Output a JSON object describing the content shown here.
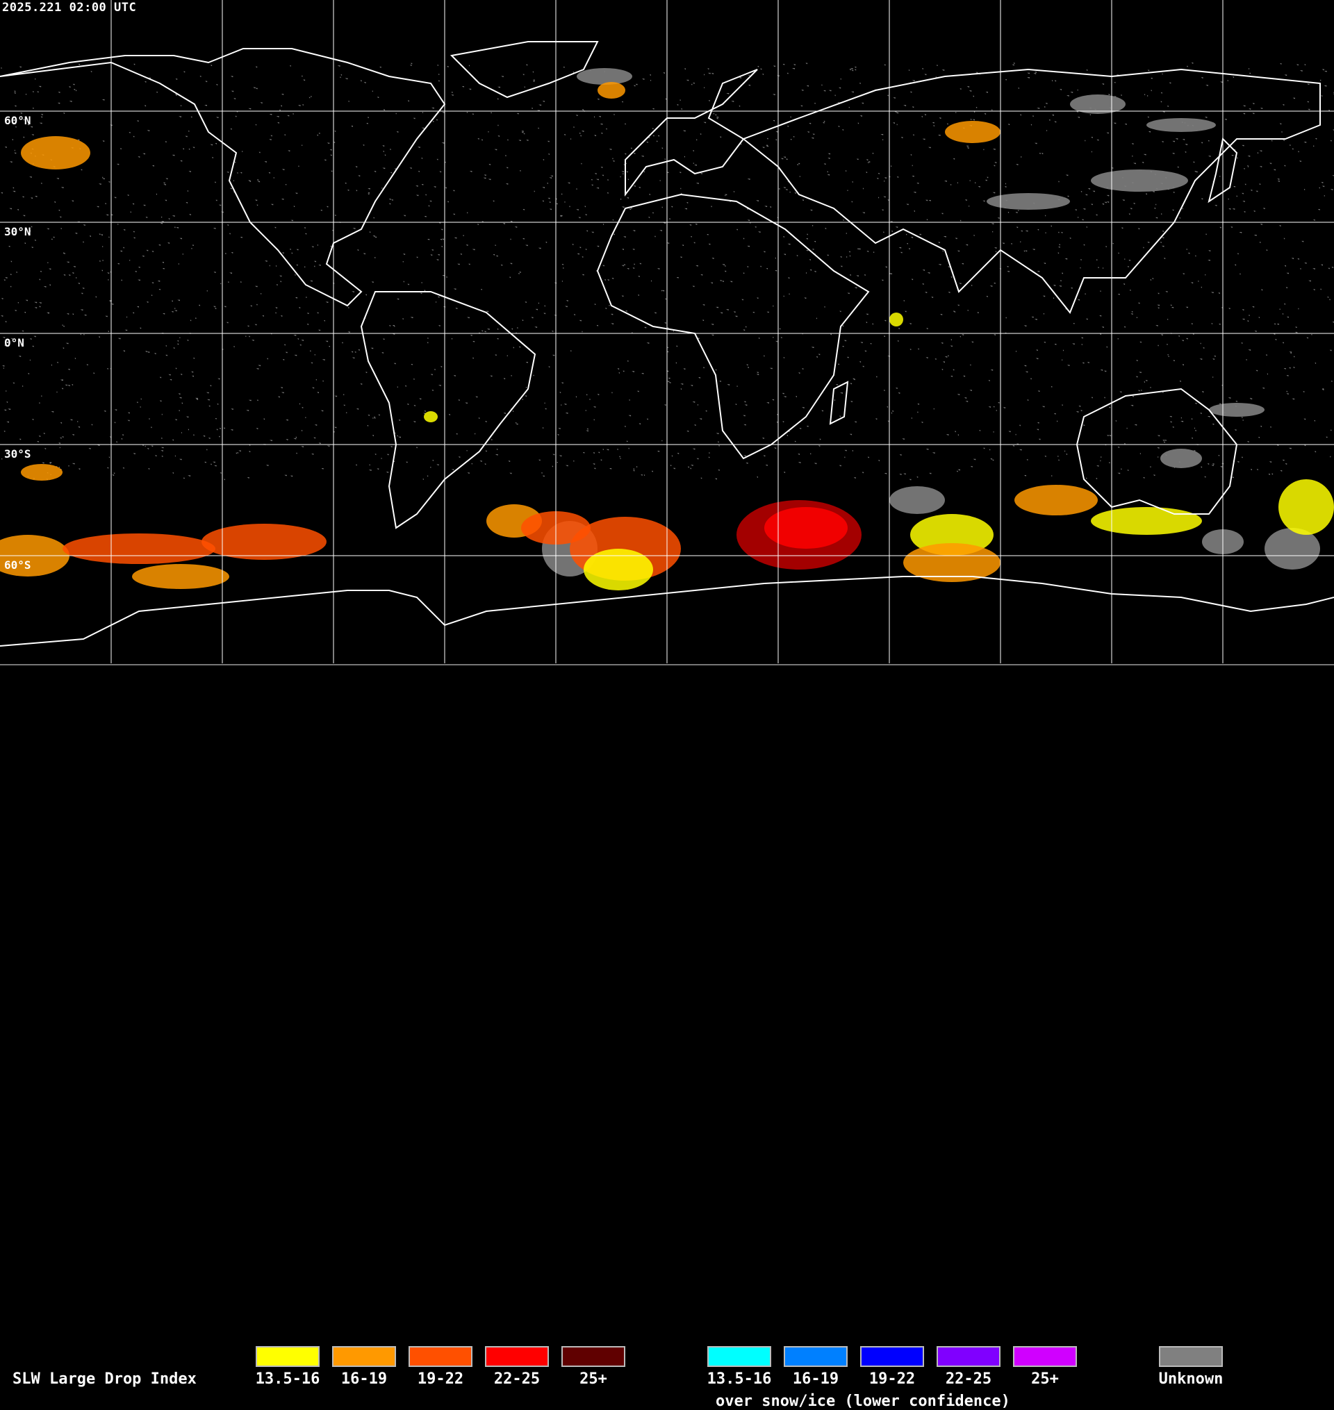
{
  "map": {
    "timestamp": "2025.221 02:00 UTC",
    "projection": "equirectangular",
    "graticule_spacing_deg": 30,
    "lat_labels": [
      "60°N",
      "30°N",
      "0°N",
      "30°S",
      "60°S"
    ]
  },
  "legend": {
    "title": "SLW Large Drop Index",
    "liquid": [
      {
        "label": "13.5-16",
        "color": "#ffff00"
      },
      {
        "label": "16-19",
        "color": "#ff9900"
      },
      {
        "label": "19-22",
        "color": "#ff5000"
      },
      {
        "label": "22-25",
        "color": "#ff0000"
      },
      {
        "label": "25+",
        "color": "#600000"
      }
    ],
    "snow_ice": [
      {
        "label": "13.5-16",
        "color": "#00ffff"
      },
      {
        "label": "16-19",
        "color": "#0080ff"
      },
      {
        "label": "19-22",
        "color": "#0000ff"
      },
      {
        "label": "22-25",
        "color": "#8000ff"
      },
      {
        "label": "25+",
        "color": "#d000ff"
      }
    ],
    "snow_note": "over snow/ice (lower confidence)",
    "unknown": {
      "label": "Unknown",
      "color": "#808080"
    }
  },
  "colors": {
    "background": "#000000",
    "coastline": "#ffffff",
    "grid": "#ffffff",
    "cloud_thin": "#9a9a9a"
  }
}
